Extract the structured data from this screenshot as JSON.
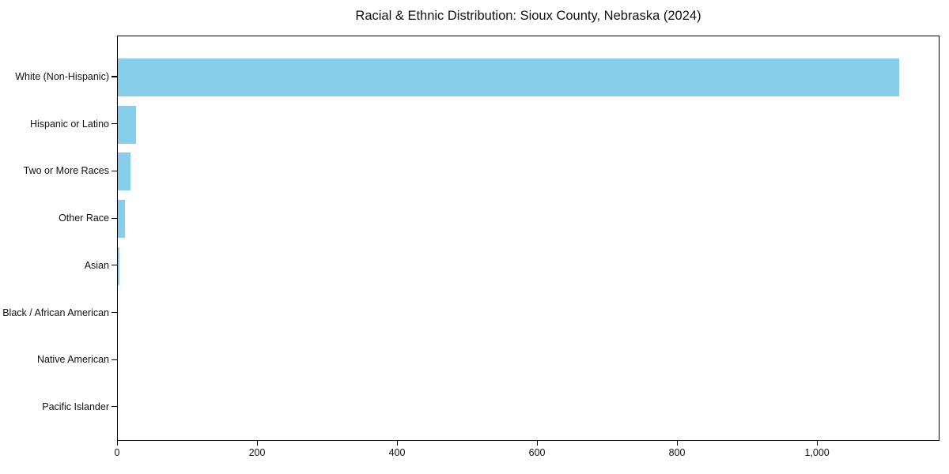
{
  "page": {
    "background_color": "#ffffff"
  },
  "chart_data": {
    "type": "bar",
    "orientation": "horizontal",
    "title": "Racial & Ethnic Distribution: Sioux County, Nebraska (2024)",
    "categories": [
      "White (Non-Hispanic)",
      "Hispanic or Latino",
      "Two or More Races",
      "Other Race",
      "Asian",
      "Black / African American",
      "Native American",
      "Pacific Islander"
    ],
    "values": [
      1116,
      26,
      18,
      10,
      2,
      0,
      0,
      0
    ],
    "bar_color": "#87CEEB",
    "xlabel": "",
    "ylabel": "",
    "xlim": [
      0,
      1175
    ],
    "x_ticks": [
      0,
      200,
      400,
      600,
      800,
      1000
    ],
    "x_tick_labels": [
      "0",
      "200",
      "400",
      "600",
      "800",
      "1,000"
    ],
    "grid": false,
    "legend": null,
    "frame_color": "#000000",
    "text_color": "#111111"
  }
}
